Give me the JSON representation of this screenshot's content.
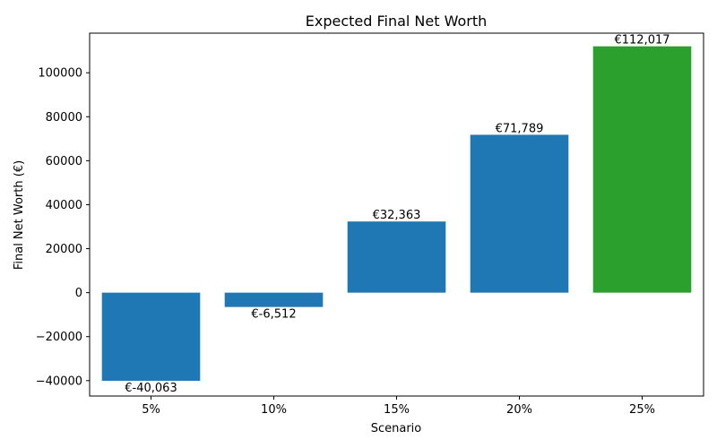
{
  "chart_data": {
    "type": "bar",
    "title": "Expected Final Net Worth",
    "xlabel": "Scenario",
    "ylabel": "Final Net Worth (€)",
    "categories": [
      "5%",
      "10%",
      "15%",
      "20%",
      "25%"
    ],
    "values": [
      -40063,
      -6512,
      32363,
      71789,
      112017
    ],
    "data_labels": [
      "€-40,063",
      "€-6,512",
      "€32,363",
      "€71,789",
      "€112,017"
    ],
    "bar_colors": [
      "#1f77b4",
      "#1f77b4",
      "#1f77b4",
      "#1f77b4",
      "#2ca02c"
    ],
    "ylim": [
      -47000,
      118000
    ],
    "yticks": [
      -40000,
      -20000,
      0,
      20000,
      40000,
      60000,
      80000,
      100000
    ],
    "ytick_labels": [
      "−40000",
      "−20000",
      "0",
      "20000",
      "40000",
      "60000",
      "80000",
      "100000"
    ],
    "grid": false,
    "legend": "none"
  }
}
